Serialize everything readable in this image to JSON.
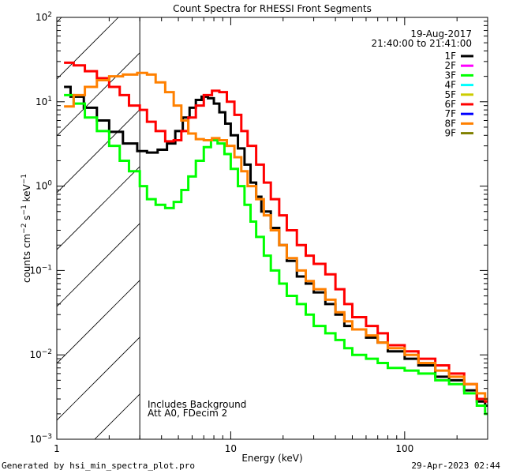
{
  "chart_data": {
    "type": "line",
    "title": "Count Spectra for RHESSI Front Segments",
    "xlabel": "Energy (keV)",
    "ylabel": "counts cm^-2 s^-1 keV^-1",
    "xscale": "log",
    "yscale": "log",
    "xlim": [
      1,
      300
    ],
    "ylim": [
      0.001,
      100
    ],
    "x_tick_labels": [
      "1",
      "10",
      "100"
    ],
    "x_tick_values": [
      1,
      10,
      100
    ],
    "y_tick_labels": [
      {
        "base": "10",
        "exp": "2",
        "value": 100
      },
      {
        "base": "10",
        "exp": "1",
        "value": 10
      },
      {
        "base": "10",
        "exp": "0",
        "value": 1
      },
      {
        "base": "10",
        "exp": "−1",
        "value": 0.1
      },
      {
        "base": "10",
        "exp": "−2",
        "value": 0.01
      },
      {
        "base": "10",
        "exp": "−3",
        "value": 0.001
      }
    ],
    "grid": false,
    "legend_position": "top-right",
    "date": "19-Aug-2017",
    "time_range": "21:40:00 to 21:41:00",
    "legend": [
      {
        "label": "1F",
        "color": "#000000"
      },
      {
        "label": "2F",
        "color": "#ff00ff"
      },
      {
        "label": "3F",
        "color": "#00ff00"
      },
      {
        "label": "4F",
        "color": "#00ffff"
      },
      {
        "label": "5F",
        "color": "#cccc00"
      },
      {
        "label": "6F",
        "color": "#ff0000"
      },
      {
        "label": "7F",
        "color": "#0000ff"
      },
      {
        "label": "8F",
        "color": "#ff8000"
      },
      {
        "label": "9F",
        "color": "#808000"
      }
    ],
    "excluded_region": {
      "from": 1,
      "to": 3,
      "style": "hatched"
    },
    "annotations": [
      "Includes Background",
      "Att A0, FDecim 2"
    ],
    "series": [
      {
        "name": "1F",
        "color": "#000000",
        "x": [
          1.1,
          1.2,
          1.43,
          1.7,
          2.0,
          2.4,
          2.9,
          3.3,
          3.8,
          4.3,
          4.8,
          5.3,
          5.8,
          6.3,
          6.8,
          7.4,
          8.0,
          8.6,
          9.3,
          10,
          11,
          12,
          13,
          14,
          15,
          17,
          19,
          21,
          24,
          27,
          30,
          35,
          40,
          45,
          50,
          60,
          70,
          80,
          100,
          120,
          150,
          180,
          220,
          260,
          290
        ],
        "y": [
          15,
          11.5,
          8.5,
          6,
          4.4,
          3.2,
          2.6,
          2.5,
          2.7,
          3.2,
          4.5,
          6.5,
          8.5,
          10.5,
          11.5,
          11,
          9.5,
          7.5,
          5.5,
          4,
          2.8,
          1.8,
          1.1,
          0.75,
          0.5,
          0.32,
          0.2,
          0.13,
          0.085,
          0.07,
          0.055,
          0.04,
          0.03,
          0.022,
          0.02,
          0.016,
          0.014,
          0.011,
          0.009,
          0.0075,
          0.0055,
          0.005,
          0.0038,
          0.0028,
          0.0025
        ]
      },
      {
        "name": "3F",
        "color": "#00ff00",
        "x": [
          1.1,
          1.25,
          1.45,
          1.7,
          2.0,
          2.3,
          2.6,
          3.0,
          3.3,
          3.7,
          4.2,
          4.7,
          5.2,
          5.7,
          6.3,
          7,
          7.7,
          8.4,
          9.2,
          10,
          11,
          12,
          13,
          14,
          15.5,
          17,
          19,
          21,
          24,
          27,
          30,
          35,
          40,
          45,
          50,
          60,
          70,
          80,
          100,
          120,
          150,
          180,
          220,
          260,
          290
        ],
        "y": [
          12,
          9.5,
          6.5,
          4.5,
          3.0,
          2.0,
          1.5,
          1.0,
          0.7,
          0.6,
          0.55,
          0.65,
          0.9,
          1.3,
          2.0,
          2.9,
          3.5,
          3.2,
          2.4,
          1.6,
          1.0,
          0.6,
          0.38,
          0.25,
          0.15,
          0.1,
          0.07,
          0.05,
          0.04,
          0.03,
          0.022,
          0.018,
          0.015,
          0.012,
          0.01,
          0.009,
          0.008,
          0.007,
          0.0065,
          0.006,
          0.005,
          0.0045,
          0.0035,
          0.0025,
          0.002
        ]
      },
      {
        "name": "6F",
        "color": "#ff0000",
        "x": [
          1.1,
          1.25,
          1.45,
          1.7,
          2.0,
          2.3,
          2.6,
          3.0,
          3.3,
          3.7,
          4.2,
          4.7,
          5.2,
          5.7,
          6.3,
          7,
          7.8,
          8.6,
          9.5,
          10.5,
          11.5,
          12.5,
          14,
          15.5,
          17,
          19,
          21,
          24,
          27,
          30,
          35,
          40,
          45,
          50,
          60,
          70,
          80,
          100,
          120,
          150,
          180,
          220,
          260,
          290
        ],
        "y": [
          29,
          27,
          23,
          19,
          15,
          12,
          9,
          8,
          5.8,
          4.5,
          3.4,
          3.5,
          4.5,
          6.5,
          9,
          12,
          13.5,
          13,
          10,
          7,
          4.5,
          3,
          1.8,
          1.1,
          0.7,
          0.45,
          0.3,
          0.2,
          0.15,
          0.12,
          0.09,
          0.06,
          0.04,
          0.028,
          0.022,
          0.018,
          0.013,
          0.011,
          0.009,
          0.0075,
          0.006,
          0.0045,
          0.003,
          0.0028
        ]
      },
      {
        "name": "8F",
        "color": "#ff8000",
        "x": [
          1.1,
          1.25,
          1.45,
          1.7,
          2.0,
          2.4,
          2.9,
          3.3,
          3.7,
          4.2,
          4.7,
          5.2,
          5.7,
          6.3,
          7,
          7.8,
          8.6,
          9.5,
          10.5,
          11.5,
          12.5,
          14,
          15.5,
          17,
          19,
          21,
          24,
          27,
          30,
          35,
          40,
          45,
          50,
          60,
          70,
          80,
          100,
          120,
          150,
          180,
          220,
          260,
          290
        ],
        "y": [
          8.8,
          12,
          15,
          18,
          20,
          21,
          22,
          21,
          17,
          13,
          9,
          6,
          4.2,
          3.6,
          3.5,
          3.7,
          3.5,
          3.0,
          2.2,
          1.5,
          1.0,
          0.7,
          0.45,
          0.3,
          0.2,
          0.14,
          0.1,
          0.075,
          0.06,
          0.045,
          0.032,
          0.025,
          0.02,
          0.017,
          0.014,
          0.012,
          0.01,
          0.008,
          0.0065,
          0.0055,
          0.0045,
          0.0035,
          0.003
        ]
      }
    ]
  },
  "footer": {
    "generated_by": "Generated by hsi_min_spectra_plot.pro",
    "timestamp": "29-Apr-2023 02:44"
  }
}
